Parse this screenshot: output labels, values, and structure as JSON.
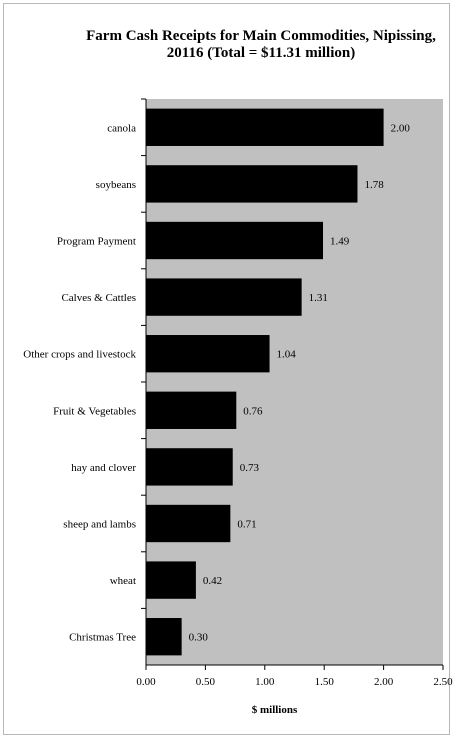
{
  "chart_data": {
    "type": "bar",
    "orientation": "horizontal",
    "title_line1": "Farm Cash Receipts for Main Commodities, Nipissing,",
    "title_line2": "20116 (Total = $11.31  million)",
    "xlabel": "$ millions",
    "ylabel": "",
    "xlim": [
      0,
      2.5
    ],
    "x_ticks": [
      "0.00",
      "0.50",
      "1.00",
      "1.50",
      "2.00",
      "2.50"
    ],
    "categories": [
      "canola",
      "soybeans",
      "Program Payment",
      "Calves & Cattles",
      "Other crops and livestock",
      "Fruit & Vegetables",
      "hay and clover",
      "sheep and lambs",
      "wheat",
      "Christmas Tree"
    ],
    "values": [
      2.0,
      1.78,
      1.49,
      1.31,
      1.04,
      0.76,
      0.73,
      0.71,
      0.42,
      0.3
    ],
    "value_labels": [
      "2.00",
      "1.78",
      "1.49",
      "1.31",
      "1.04",
      "0.76",
      "0.73",
      "0.71",
      "0.42",
      "0.30"
    ],
    "grid": false,
    "legend": "none",
    "colors": {
      "bar": "#000000",
      "plot_background": "#c0c0c0"
    }
  }
}
